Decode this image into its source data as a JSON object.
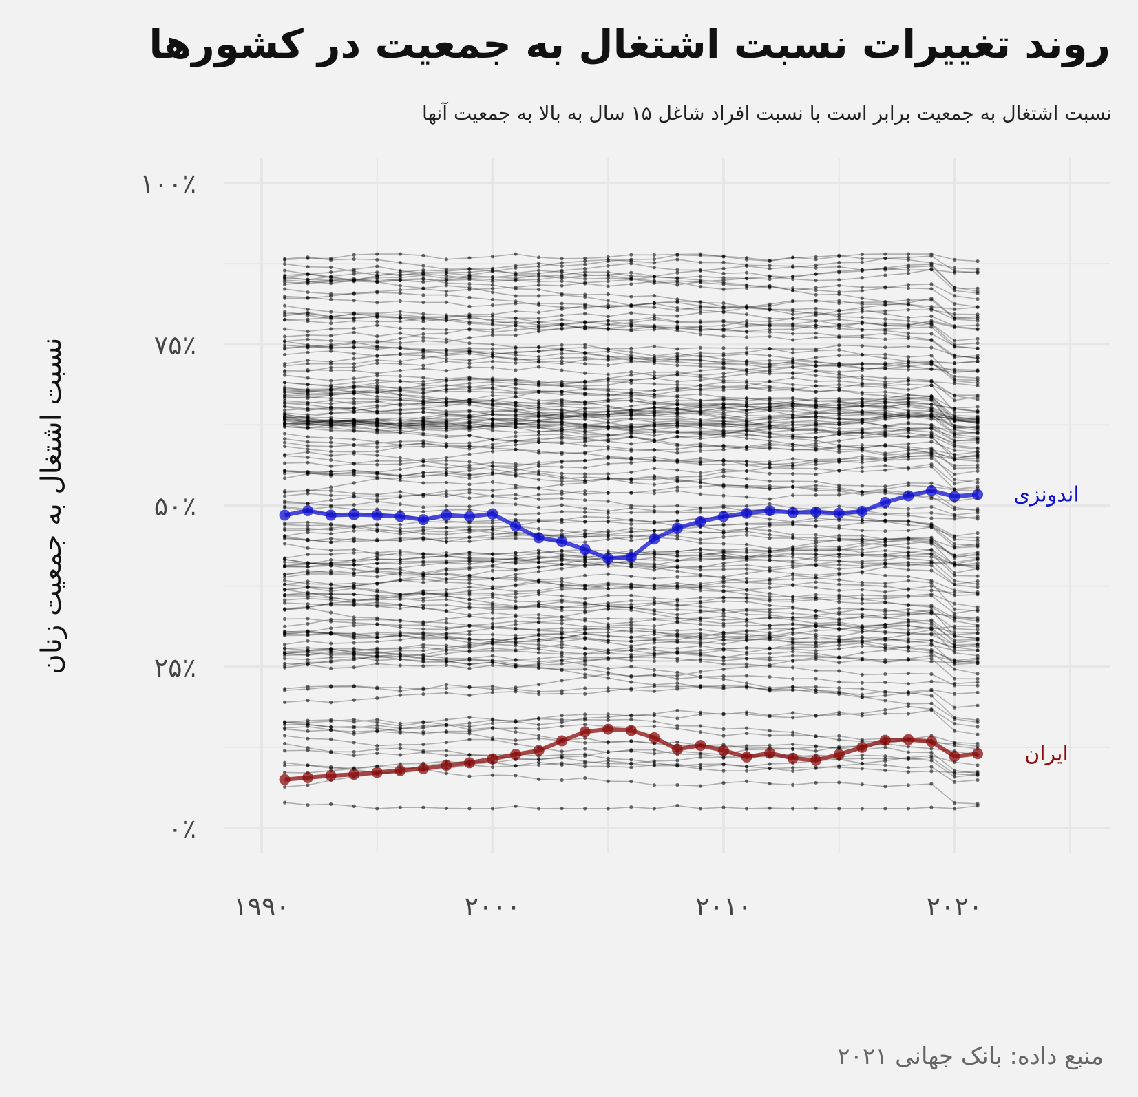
{
  "title": "روند تغییرات نسبت اشتغال به جمعیت در کشورها",
  "subtitle": "نسبت اشتغال به جمعیت برابر است با نسبت افراد شاغل ۱۵ سال به بالا به جمعیت آنها",
  "caption": "منبع داده: بانک جهانی ۲۰۲۱",
  "colors": {
    "background": "#f2f2f2",
    "grid": "#e6e6e6",
    "background_series": "#000000",
    "indonesia": "#1010d0",
    "iran": "#8b0d0d"
  },
  "chart_data": {
    "type": "line",
    "ylabel": "نسبت اشتغال به جمعیت زنان",
    "xlabel": "",
    "xlim": [
      1990,
      2021
    ],
    "ylim": [
      0,
      100
    ],
    "x_ticks": [
      1990,
      2000,
      2010,
      2020
    ],
    "x_tick_labels": [
      "۱۹۹۰",
      "۲۰۰۰",
      "۲۰۱۰",
      "۲۰۲۰"
    ],
    "y_ticks": [
      0,
      25,
      50,
      75,
      100
    ],
    "y_tick_labels": [
      "۰٪",
      "۲۵٪",
      "۵۰٪",
      "۷۵٪",
      "۱۰۰٪"
    ],
    "grid": true,
    "x": [
      1991,
      1992,
      1993,
      1994,
      1995,
      1996,
      1997,
      1998,
      1999,
      2000,
      2001,
      2002,
      2003,
      2004,
      2005,
      2006,
      2007,
      2008,
      2009,
      2010,
      2011,
      2012,
      2013,
      2014,
      2015,
      2016,
      2017,
      2018,
      2019,
      2020,
      2021
    ],
    "highlight_series": [
      {
        "name": "اندونزی",
        "color": "#1010d0",
        "values": [
          48.5,
          49.2,
          48.5,
          48.6,
          48.5,
          48.3,
          47.8,
          48.5,
          48.3,
          48.7,
          46.8,
          45.0,
          44.4,
          43.2,
          41.8,
          42.0,
          44.8,
          46.5,
          47.5,
          48.3,
          48.8,
          49.2,
          48.9,
          49.0,
          48.8,
          49.1,
          50.5,
          51.5,
          52.3,
          51.4,
          51.7
        ]
      },
      {
        "name": "ایران",
        "color": "#8b0d0d",
        "values": [
          7.5,
          7.8,
          8.1,
          8.3,
          8.6,
          8.9,
          9.2,
          9.7,
          10.1,
          10.7,
          11.4,
          12.0,
          13.5,
          14.9,
          15.3,
          15.1,
          14.0,
          12.2,
          12.8,
          12.0,
          11.0,
          11.6,
          10.8,
          10.5,
          11.4,
          12.5,
          13.6,
          13.7,
          13.4,
          11.1,
          11.5
        ]
      }
    ],
    "background_series_count": 160,
    "background_series_range": [
      4,
      89
    ]
  }
}
